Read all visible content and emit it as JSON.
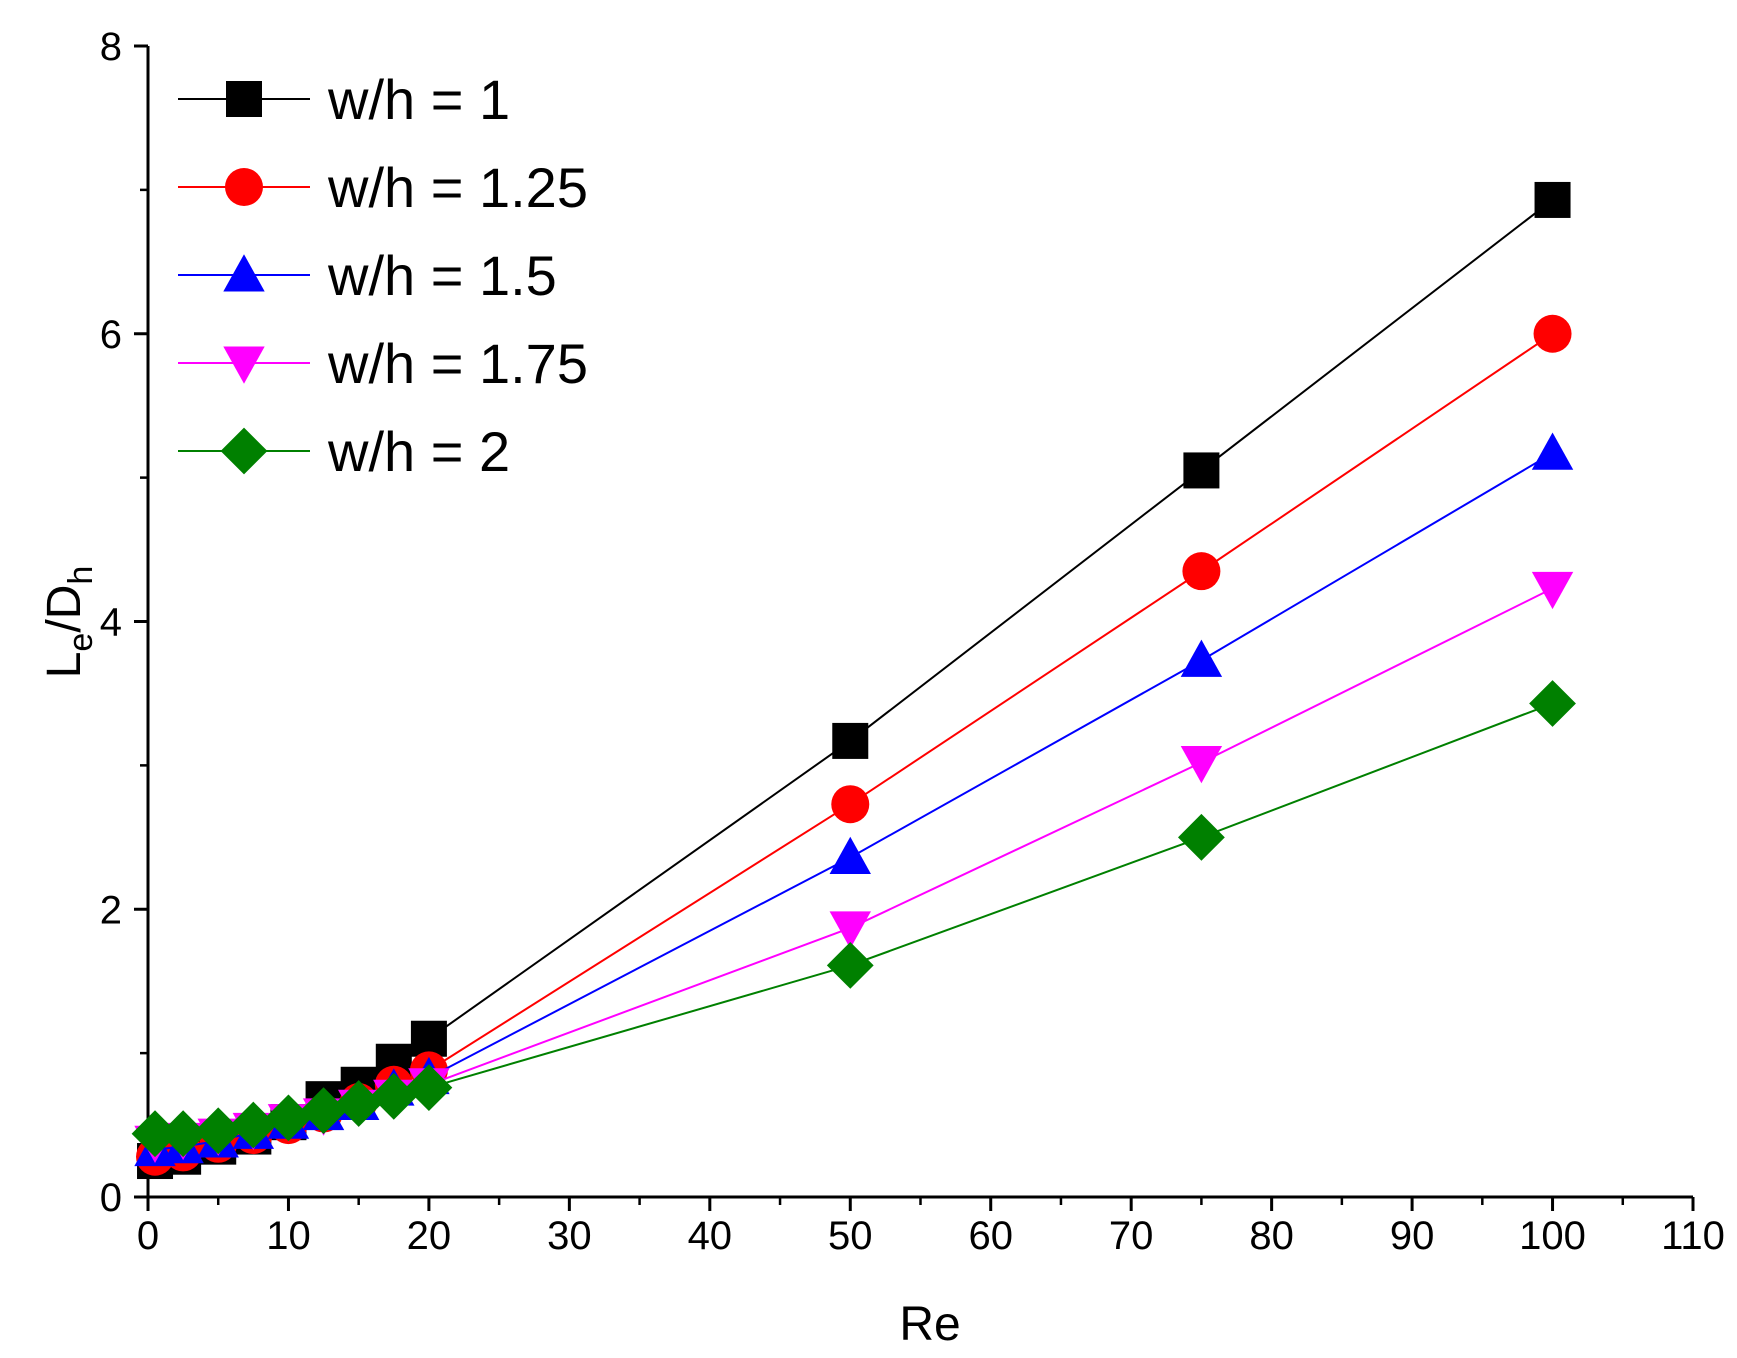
{
  "chart_data": {
    "type": "line",
    "title": "",
    "xlabel": "Re",
    "ylabel": {
      "main": "L",
      "sub1": "e",
      "mid": "/D",
      "sub2": "h"
    },
    "xlim": [
      0,
      110
    ],
    "ylim": [
      0,
      8
    ],
    "xticks": [
      0,
      10,
      20,
      30,
      40,
      50,
      60,
      70,
      80,
      90,
      100,
      110
    ],
    "yticks": [
      0,
      2,
      4,
      6,
      8
    ],
    "grid": false,
    "legend_position": "top-left",
    "x": [
      0.5,
      2.5,
      5,
      7.5,
      10,
      12.5,
      15,
      17.5,
      20,
      50,
      75,
      100
    ],
    "series": [
      {
        "name": "w/h = 1",
        "color": "#000000",
        "marker": "square",
        "values": [
          0.25,
          0.28,
          0.35,
          0.42,
          0.52,
          0.68,
          0.78,
          0.94,
          1.1,
          3.17,
          5.05,
          6.93
        ]
      },
      {
        "name": "w/h = 1.25",
        "color": "#ff0000",
        "marker": "circle",
        "values": [
          0.28,
          0.31,
          0.37,
          0.43,
          0.5,
          0.58,
          0.66,
          0.78,
          0.88,
          2.73,
          4.35,
          6.0
        ]
      },
      {
        "name": "w/h = 1.5",
        "color": "#0000ff",
        "marker": "triangle-up",
        "values": [
          0.33,
          0.35,
          0.39,
          0.45,
          0.52,
          0.58,
          0.65,
          0.75,
          0.83,
          2.36,
          3.73,
          5.17
        ]
      },
      {
        "name": "w/h = 1.75",
        "color": "#ff00ff",
        "marker": "triangle-down",
        "values": [
          0.38,
          0.4,
          0.43,
          0.47,
          0.53,
          0.57,
          0.63,
          0.7,
          0.78,
          1.87,
          3.02,
          4.23
        ]
      },
      {
        "name": "w/h = 2",
        "color": "#008000",
        "marker": "diamond",
        "values": [
          0.44,
          0.44,
          0.46,
          0.5,
          0.55,
          0.6,
          0.65,
          0.7,
          0.76,
          1.61,
          2.5,
          3.43
        ]
      }
    ]
  }
}
